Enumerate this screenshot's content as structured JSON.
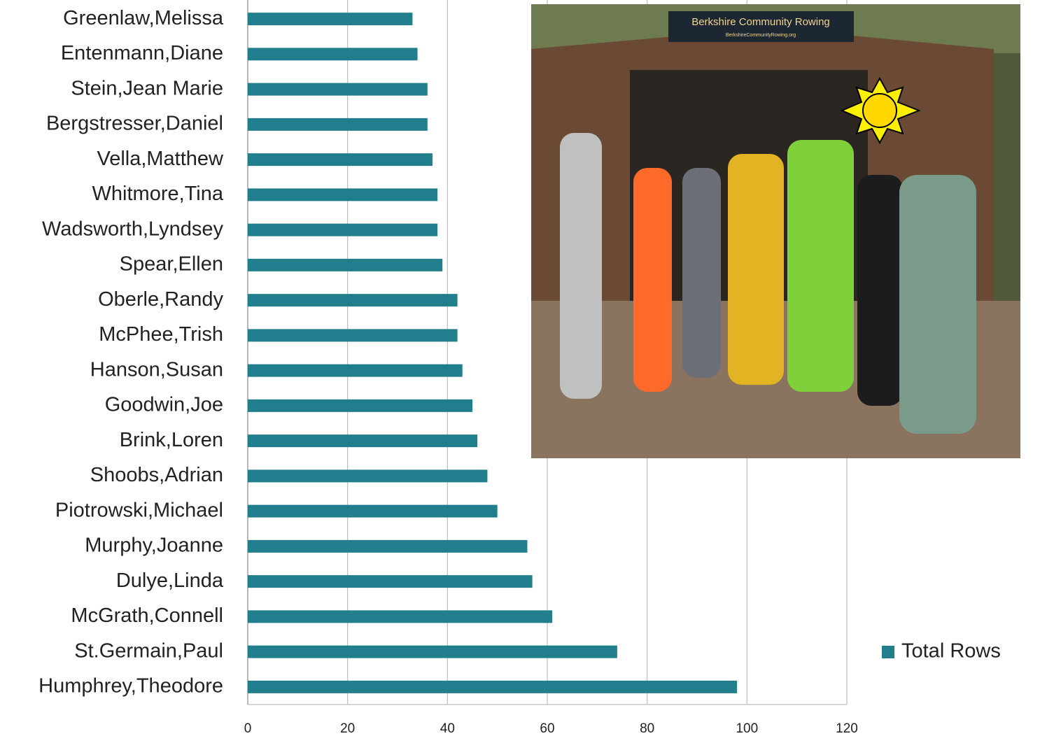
{
  "chart_data": {
    "type": "bar",
    "orientation": "horizontal",
    "categories": [
      "Greenlaw,Melissa",
      "Entenmann,Diane",
      "Stein,Jean Marie",
      "Bergstresser,Daniel",
      "Vella,Matthew",
      "Whitmore,Tina",
      "Wadsworth,Lyndsey",
      "Spear,Ellen",
      "Oberle,Randy",
      "McPhee,Trish",
      "Hanson,Susan",
      "Goodwin,Joe",
      "Brink,Loren",
      "Shoobs,Adrian",
      "Piotrowski,Michael",
      "Murphy,Joanne",
      "Dulye,Linda",
      "McGrath,Connell",
      "St.Germain,Paul",
      "Humphrey,Theodore"
    ],
    "series": [
      {
        "name": "Total Rows",
        "color": "#217e8c",
        "values": [
          33,
          34,
          36,
          36,
          37,
          38,
          38,
          39,
          42,
          42,
          43,
          45,
          46,
          48,
          50,
          56,
          57,
          61,
          74,
          98
        ]
      }
    ],
    "xlim": [
      0,
      120
    ],
    "xticks": [
      0,
      20,
      40,
      60,
      80,
      100,
      120
    ],
    "grid": true,
    "legend": "right"
  },
  "photo": {
    "sign_title": "Berkshire Community Rowing",
    "sign_url": "BerkshireCommunityRowing.org"
  }
}
